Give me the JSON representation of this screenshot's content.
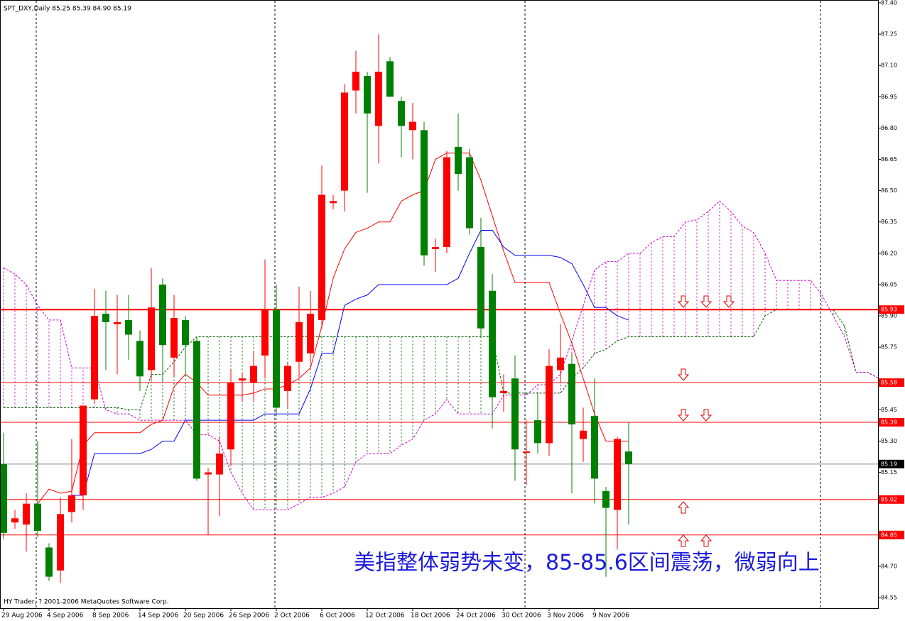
{
  "chart_data": {
    "type": "candlestick",
    "title": "SPT_DXY,Daily  85.25 85.39 84.90 85.19",
    "copyright": "HY Trader, ? 2001-2006 MetaQuotes Software Corp.",
    "annotation": "美指整体弱势未变，85-85.6区间震荡，微弱向上",
    "categories": [
      "29 Aug 2006",
      null,
      null,
      null,
      "4 Sep 2006",
      null,
      null,
      null,
      "8 Sep 2006",
      null,
      null,
      null,
      "14 Sep 2006",
      null,
      null,
      null,
      "20 Sep 2006",
      null,
      null,
      null,
      "26 Sep 2006",
      null,
      null,
      null,
      "2 Oct 2006",
      null,
      null,
      null,
      "6 Oct 2006",
      null,
      null,
      null,
      "12 Oct 2006",
      null,
      null,
      null,
      "18 Oct 2006",
      null,
      null,
      null,
      "24 Oct 2006",
      null,
      null,
      null,
      "30 Oct 2006",
      null,
      null,
      null,
      "3 Nov 2006",
      null,
      null,
      null,
      "9 Nov 2006",
      null,
      null,
      null
    ],
    "open": [
      85.19,
      84.91,
      84.9,
      85.0,
      84.79,
      84.68,
      84.96,
      85.04,
      85.5,
      85.91,
      85.86,
      85.88,
      85.78,
      85.64,
      86.05,
      85.7,
      85.88,
      85.78,
      85.14,
      85.14,
      85.26,
      85.59,
      85.58,
      85.71,
      85.93,
      85.54,
      85.68,
      85.72,
      85.88,
      86.44,
      86.5,
      86.98,
      87.05,
      86.81,
      87.12,
      86.93,
      86.79,
      86.79,
      86.22,
      86.23,
      86.71,
      86.66,
      86.23,
      86.02,
      85.53,
      85.6,
      85.25,
      85.4,
      85.29,
      85.64,
      85.67,
      85.31,
      85.42,
      85.06,
      84.97,
      85.25
    ],
    "high": [
      85.34,
      84.97,
      85.05,
      85.3,
      84.81,
      85.03,
      85.31,
      85.47,
      86.03,
      86.02,
      86.0,
      86.0,
      85.83,
      86.13,
      86.08,
      86.0,
      85.9,
      85.8,
      85.17,
      85.32,
      85.64,
      85.63,
      85.73,
      86.17,
      86.05,
      85.68,
      86.04,
      86.02,
      86.62,
      86.48,
      87.01,
      87.17,
      87.07,
      87.25,
      87.14,
      86.95,
      86.92,
      86.83,
      86.27,
      86.69,
      86.87,
      86.7,
      86.37,
      86.1,
      85.62,
      85.71,
      85.4,
      85.53,
      85.74,
      85.86,
      85.72,
      85.46,
      85.6,
      85.08,
      85.32,
      85.39
    ],
    "low": [
      84.83,
      84.88,
      84.77,
      84.84,
      84.63,
      84.62,
      84.91,
      84.97,
      85.48,
      85.64,
      85.62,
      85.69,
      85.54,
      85.59,
      85.58,
      85.61,
      85.61,
      85.11,
      84.85,
      84.94,
      85.18,
      85.49,
      85.49,
      85.6,
      85.43,
      85.46,
      85.61,
      85.67,
      85.84,
      86.41,
      86.4,
      86.87,
      86.49,
      86.63,
      86.95,
      86.66,
      86.65,
      86.14,
      86.11,
      86.2,
      86.5,
      86.29,
      85.8,
      85.36,
      85.44,
      85.11,
      85.09,
      85.24,
      85.23,
      85.58,
      85.05,
      85.2,
      85.0,
      84.65,
      84.78,
      84.9
    ],
    "close": [
      84.86,
      84.93,
      85.0,
      84.87,
      84.65,
      84.95,
      85.04,
      85.47,
      85.9,
      85.87,
      85.87,
      85.81,
      85.61,
      85.94,
      85.76,
      85.89,
      85.76,
      85.12,
      85.15,
      85.24,
      85.58,
      85.6,
      85.66,
      85.93,
      85.46,
      85.66,
      85.87,
      85.91,
      86.48,
      86.45,
      86.97,
      87.07,
      86.87,
      87.07,
      86.95,
      86.81,
      86.83,
      86.19,
      86.23,
      86.66,
      86.58,
      86.32,
      85.84,
      85.51,
      85.54,
      85.26,
      85.25,
      85.29,
      85.66,
      85.7,
      85.38,
      85.35,
      85.12,
      84.98,
      85.31,
      85.19
    ],
    "up_color": "#ff0000",
    "down_color": "#008000",
    "lines": [
      {
        "color": "#ff0000",
        "values": [
          null,
          null,
          null,
          85.0,
          85.07,
          85.05,
          85.06,
          85.28,
          85.34,
          85.34,
          85.34,
          85.34,
          85.34,
          85.38,
          85.4,
          85.56,
          85.62,
          85.58,
          85.52,
          85.52,
          85.52,
          85.52,
          85.53,
          85.55,
          85.55,
          85.57,
          85.6,
          85.65,
          85.85,
          86.08,
          86.22,
          86.3,
          86.32,
          86.35,
          86.35,
          86.45,
          86.48,
          86.5,
          86.65,
          86.68,
          86.68,
          86.68,
          86.55,
          86.38,
          86.21,
          86.06,
          86.06,
          86.06,
          86.06,
          85.91,
          85.77,
          85.6,
          85.43,
          85.3,
          85.3,
          85.3
        ]
      },
      {
        "color": "#0000ff",
        "values": [
          null,
          null,
          null,
          null,
          null,
          null,
          85.04,
          85.04,
          85.24,
          85.24,
          85.24,
          85.24,
          85.24,
          85.26,
          85.3,
          85.3,
          85.4,
          85.4,
          85.4,
          85.4,
          85.4,
          85.4,
          85.4,
          85.43,
          85.43,
          85.43,
          85.43,
          85.55,
          85.72,
          85.72,
          85.95,
          85.98,
          86.0,
          86.05,
          86.05,
          86.05,
          86.05,
          86.05,
          86.05,
          86.05,
          86.08,
          86.2,
          86.31,
          86.31,
          86.23,
          86.19,
          86.19,
          86.19,
          86.19,
          86.18,
          86.15,
          86.05,
          85.94,
          85.94,
          85.9,
          85.88
        ]
      }
    ],
    "cloud": {
      "a_color": "#006400",
      "b_color": "#cc00cc",
      "a": [
        85.46,
        85.46,
        85.46,
        85.46,
        85.46,
        85.46,
        85.46,
        85.46,
        85.46,
        85.46,
        85.46,
        85.45,
        85.45,
        85.62,
        85.62,
        85.68,
        85.75,
        85.8,
        85.8,
        85.8,
        85.8,
        85.8,
        85.8,
        85.8,
        85.8,
        85.8,
        85.8,
        85.8,
        85.8,
        85.8,
        85.8,
        85.8,
        85.8,
        85.8,
        85.8,
        85.8,
        85.8,
        85.8,
        85.8,
        85.8,
        85.8,
        85.8,
        85.8,
        85.8,
        85.53,
        85.53,
        85.53,
        85.53,
        85.53,
        85.53,
        85.6,
        85.65,
        85.72,
        85.74,
        85.78,
        85.8,
        85.8,
        85.8,
        85.8,
        85.8,
        85.8,
        85.8,
        85.8,
        85.8,
        85.8,
        85.8,
        85.8,
        85.9,
        85.93,
        85.93,
        85.93,
        85.93,
        85.93,
        85.93,
        85.85,
        85.63,
        85.63,
        85.6
      ],
      "b": [
        86.13,
        86.1,
        86.05,
        85.95,
        85.88,
        85.88,
        85.65,
        85.65,
        85.65,
        85.45,
        85.43,
        85.43,
        85.4,
        85.4,
        85.4,
        85.4,
        85.4,
        85.33,
        85.33,
        85.3,
        85.15,
        85.05,
        84.97,
        84.97,
        84.97,
        84.97,
        85.0,
        85.03,
        85.03,
        85.05,
        85.08,
        85.2,
        85.24,
        85.24,
        85.24,
        85.28,
        85.31,
        85.4,
        85.43,
        85.5,
        85.43,
        85.43,
        85.43,
        85.43,
        85.52,
        85.52,
        85.52,
        85.57,
        85.57,
        85.62,
        85.78,
        85.95,
        86.12,
        86.16,
        86.16,
        86.2,
        86.2,
        86.25,
        86.28,
        86.28,
        86.35,
        86.36,
        86.4,
        86.45,
        86.4,
        86.33,
        86.3,
        86.2,
        86.07,
        86.07,
        86.07,
        86.07,
        86.0,
        85.9,
        85.8,
        85.63,
        85.63,
        85.6
      ]
    },
    "levels": [
      85.93,
      85.58,
      85.39,
      85.02,
      84.85
    ],
    "level_color": "#ff0000",
    "current_price": 85.19,
    "ylim": [
      84.55,
      87.4
    ],
    "yticks": [
      {
        "value": 87.4,
        "label": "87.40"
      },
      87.25,
      {
        "value": 87.1,
        "label": "87.10"
      },
      86.95,
      {
        "value": 86.8,
        "label": "86.80"
      },
      86.65,
      {
        "value": 86.5,
        "label": "86.50"
      },
      86.35,
      {
        "value": 86.2,
        "label": "86.20"
      },
      86.05,
      {
        "value": 85.9,
        "label": "85.90"
      },
      85.75,
      85.45,
      {
        "value": 85.3,
        "label": "85.30"
      },
      85.15,
      {
        "value": 84.7,
        "label": "84.70"
      },
      84.55
    ]
  }
}
